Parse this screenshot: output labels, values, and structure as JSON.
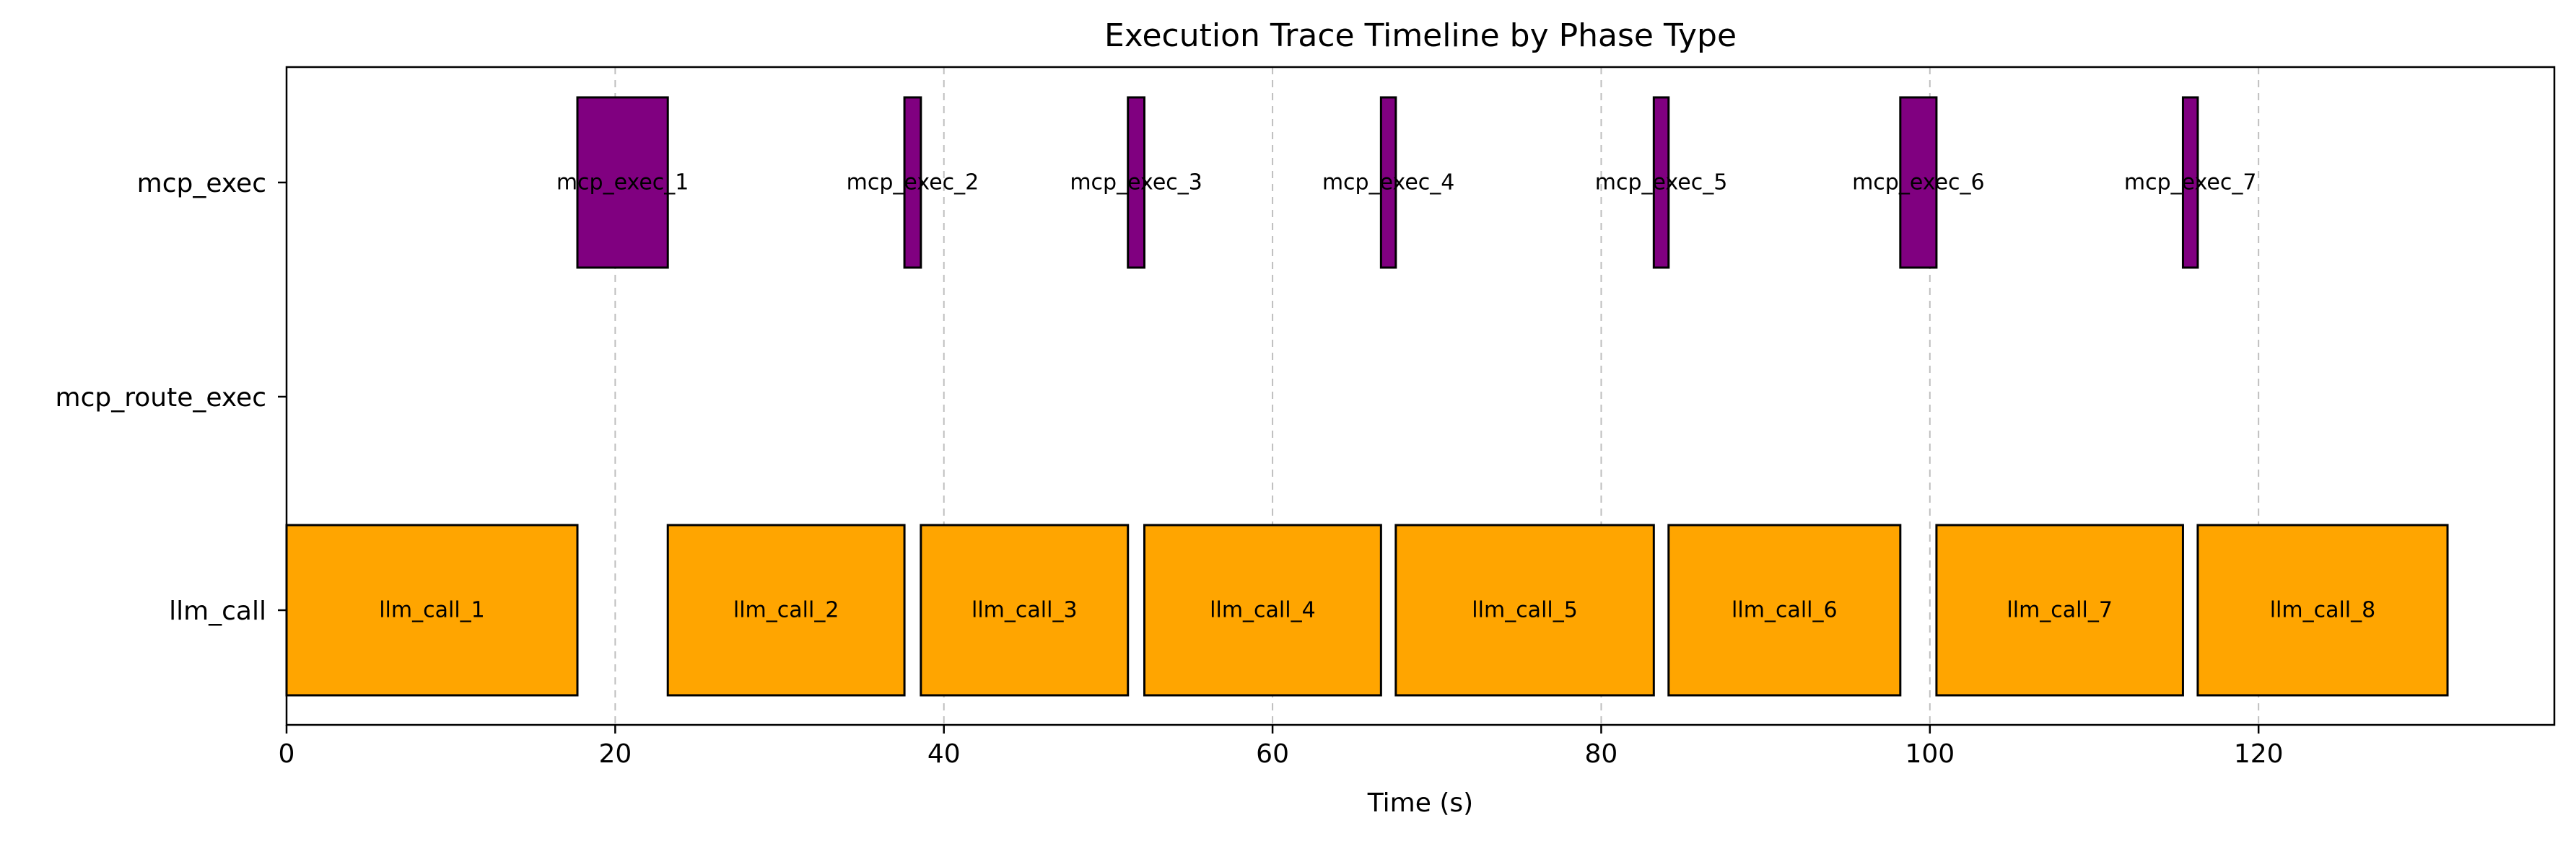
{
  "chart_data": {
    "type": "gantt",
    "title": "Execution Trace Timeline by Phase Type",
    "xlabel": "Time (s)",
    "ylabel": "",
    "xlim": [
      0,
      138
    ],
    "xticks": [
      0,
      20,
      40,
      60,
      80,
      100,
      120
    ],
    "categories": [
      "mcp_exec",
      "mcp_route_exec",
      "llm_call"
    ],
    "grid": "x-dashed",
    "colors": {
      "llm_call": "#FFA500",
      "mcp_exec": "#800080"
    },
    "series": [
      {
        "category": "llm_call",
        "label": "llm_call_1",
        "start": 0.0,
        "end": 17.7
      },
      {
        "category": "llm_call",
        "label": "llm_call_2",
        "start": 23.2,
        "end": 37.6
      },
      {
        "category": "llm_call",
        "label": "llm_call_3",
        "start": 38.6,
        "end": 51.2
      },
      {
        "category": "llm_call",
        "label": "llm_call_4",
        "start": 52.2,
        "end": 66.6
      },
      {
        "category": "llm_call",
        "label": "llm_call_5",
        "start": 67.5,
        "end": 83.2
      },
      {
        "category": "llm_call",
        "label": "llm_call_6",
        "start": 84.1,
        "end": 98.2
      },
      {
        "category": "llm_call",
        "label": "llm_call_7",
        "start": 100.4,
        "end": 115.4
      },
      {
        "category": "llm_call",
        "label": "llm_call_8",
        "start": 116.3,
        "end": 131.5
      },
      {
        "category": "mcp_exec",
        "label": "mcp_exec_1",
        "start": 17.7,
        "end": 23.2
      },
      {
        "category": "mcp_exec",
        "label": "mcp_exec_2",
        "start": 37.6,
        "end": 38.6
      },
      {
        "category": "mcp_exec",
        "label": "mcp_exec_3",
        "start": 51.2,
        "end": 52.2
      },
      {
        "category": "mcp_exec",
        "label": "mcp_exec_4",
        "start": 66.6,
        "end": 67.5
      },
      {
        "category": "mcp_exec",
        "label": "mcp_exec_5",
        "start": 83.2,
        "end": 84.1
      },
      {
        "category": "mcp_exec",
        "label": "mcp_exec_6",
        "start": 98.2,
        "end": 100.4
      },
      {
        "category": "mcp_exec",
        "label": "mcp_exec_7",
        "start": 115.4,
        "end": 116.3
      }
    ]
  }
}
